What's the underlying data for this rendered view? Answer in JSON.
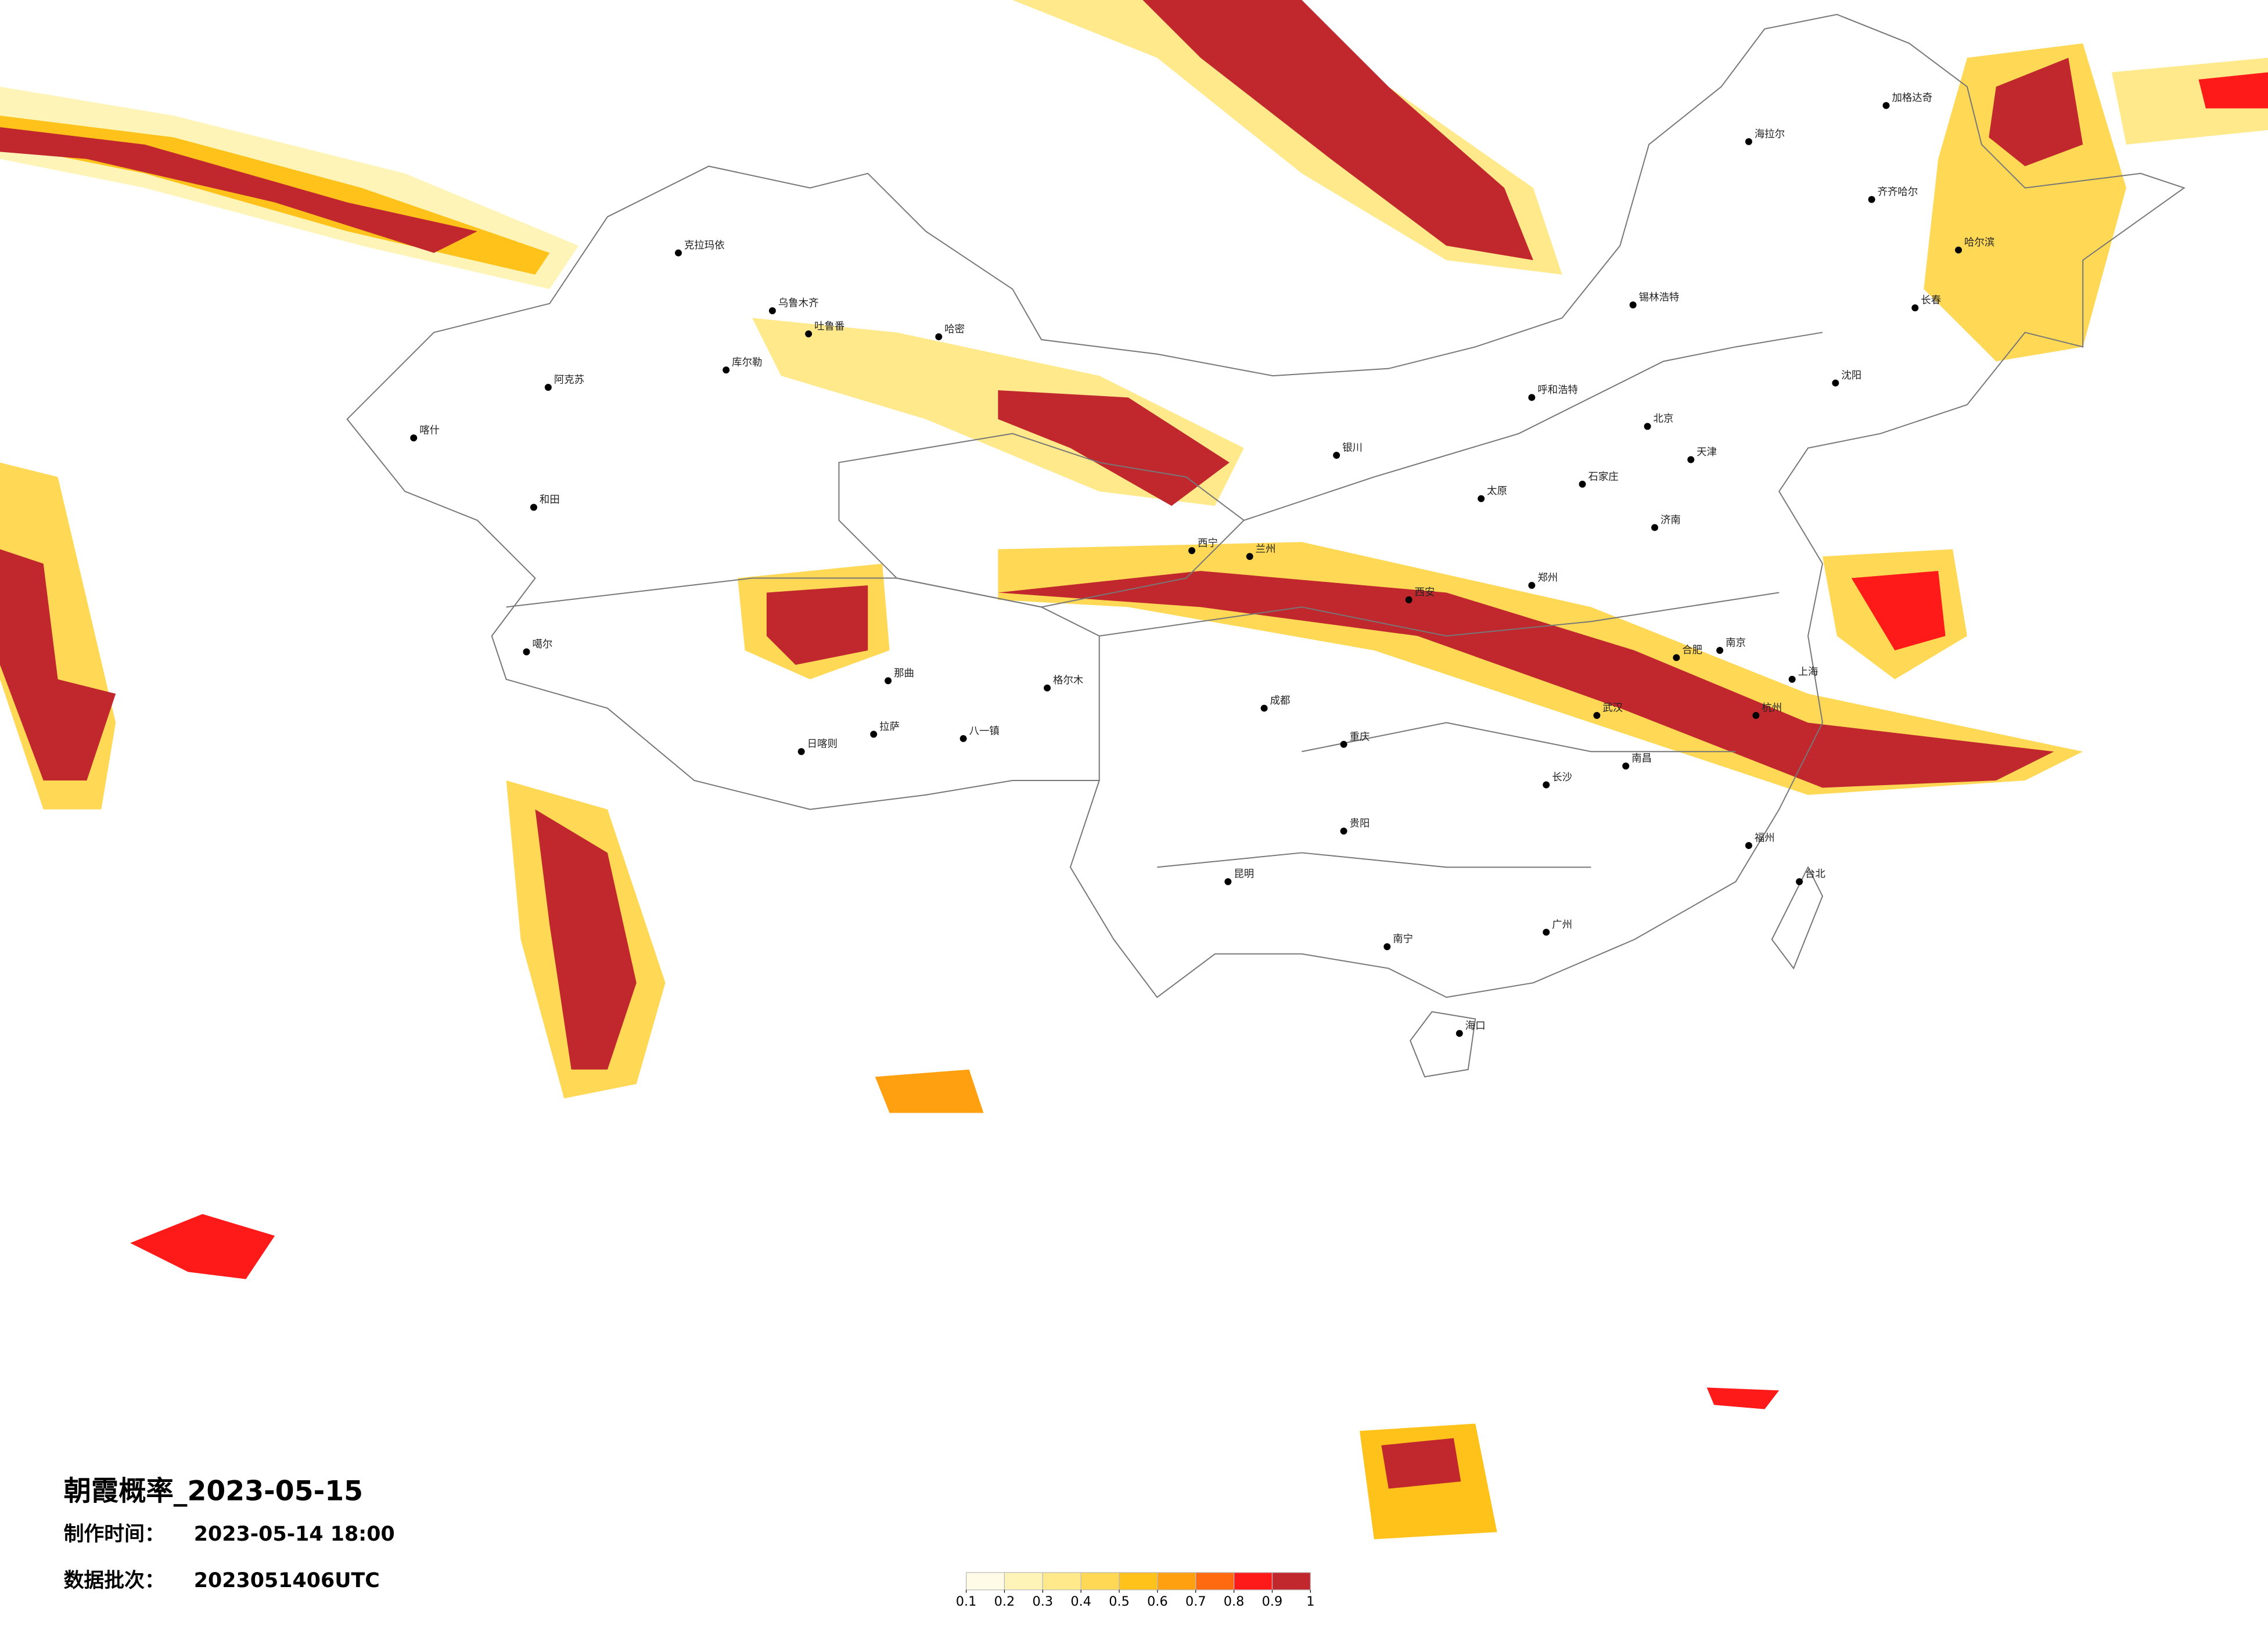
{
  "map": {
    "title": "朝霞概率_2023-05-15",
    "info": [
      {
        "label": "制作时间：",
        "value": "2023-05-14 18:00"
      },
      {
        "label": "数据批次：",
        "value": "2023051406UTC"
      }
    ],
    "legend": {
      "ticks": [
        0.1,
        0.2,
        0.3,
        0.4,
        0.5,
        0.6,
        0.7,
        0.8,
        0.9,
        1
      ],
      "colors": [
        "#fffbe6",
        "#fff4b8",
        "#ffe98a",
        "#ffd955",
        "#ffc21a",
        "#ffa010",
        "#ff6a10",
        "#ff1a1a",
        "#c0282e"
      ]
    },
    "cities": [
      "克拉玛依",
      "乌鲁木齐",
      "吐鲁番",
      "哈密",
      "阿克苏",
      "库尔勒",
      "和田",
      "喀什",
      "噶尔",
      "日喀则",
      "拉萨",
      "八一镇",
      "那曲",
      "格尔木",
      "西宁",
      "兰州",
      "银川",
      "呼和浩特",
      "北京",
      "天津",
      "石家庄",
      "太原",
      "济南",
      "郑州",
      "西安",
      "武汉",
      "长沙",
      "南昌",
      "合肥",
      "南京",
      "上海",
      "杭州",
      "福州",
      "广州",
      "南宁",
      "海口",
      "昆明",
      "贵阳",
      "成都",
      "重庆",
      "哈尔滨",
      "长春",
      "沈阳",
      "台北",
      "齐齐哈尔",
      "海拉尔",
      "加格达奇",
      "锡林浩特"
    ]
  }
}
